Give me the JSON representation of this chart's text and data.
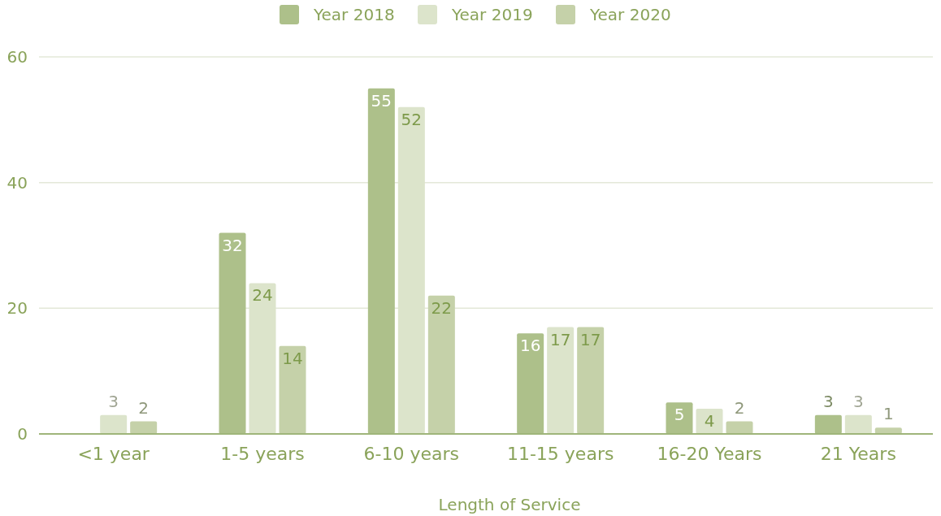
{
  "chart_data": {
    "type": "bar",
    "xlabel": "Length of Service",
    "categories": [
      "<1 year",
      "1-5 years",
      "6-10 years",
      "11-15 years",
      "16-20 Years",
      "21 Years"
    ],
    "series": [
      {
        "name": "Year 2018",
        "color": "#adc08a",
        "values": [
          null,
          32,
          55,
          16,
          5,
          3
        ]
      },
      {
        "name": "Year 2019",
        "color": "#dce4cb",
        "values": [
          3,
          24,
          52,
          17,
          4,
          3
        ]
      },
      {
        "name": "Year 2020",
        "color": "#c5d1a9",
        "values": [
          2,
          14,
          22,
          17,
          2,
          1
        ]
      }
    ],
    "ylim": [
      0,
      60
    ],
    "yticks": [
      0,
      20,
      40,
      60
    ],
    "grid": "y",
    "legend": "top",
    "data_labels": true
  }
}
